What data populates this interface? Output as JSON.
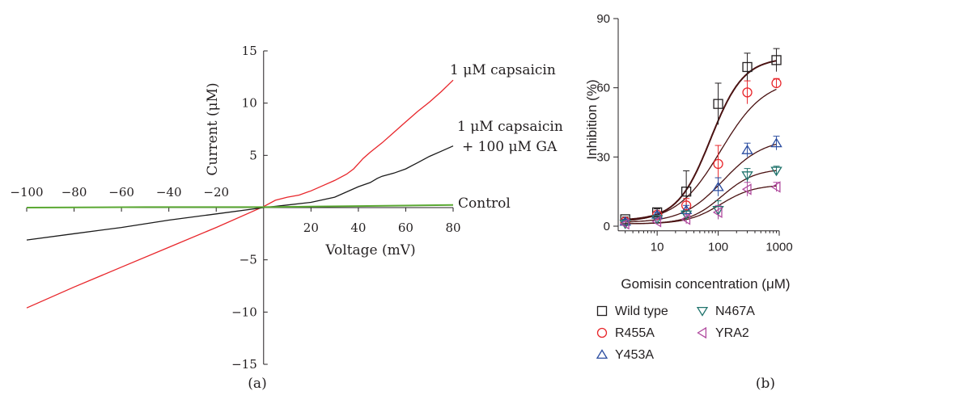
{
  "chart_data": [
    {
      "id": "a",
      "type": "line",
      "panel_label": "(a)",
      "xlabel": "Voltage (mV)",
      "ylabel": "Current (μM)",
      "xlim": [
        -100,
        80
      ],
      "ylim": [
        -15,
        15
      ],
      "xticks": [
        -100,
        -80,
        -60,
        -40,
        -20,
        20,
        40,
        60,
        80
      ],
      "xtick_labels": [
        "−100",
        "−80",
        "−60",
        "−40",
        "−20",
        "20",
        "40",
        "60",
        "80"
      ],
      "yticks": [
        15,
        10,
        5,
        -5,
        -10,
        -15
      ],
      "ytick_labels": [
        "15",
        "10",
        "5",
        "−5",
        "−10",
        "−15"
      ],
      "grid": false,
      "series": [
        {
          "name": "1 μM capsaicin",
          "color": "#e8262b",
          "points": [
            [
              -100,
              -9.6
            ],
            [
              -80,
              -7.6
            ],
            [
              -60,
              -5.7
            ],
            [
              -40,
              -3.8
            ],
            [
              -20,
              -1.9
            ],
            [
              0,
              0.1
            ],
            [
              5,
              0.7
            ],
            [
              10,
              1.0
            ],
            [
              15,
              1.2
            ],
            [
              20,
              1.6
            ],
            [
              25,
              2.1
            ],
            [
              30,
              2.6
            ],
            [
              35,
              3.2
            ],
            [
              38,
              3.7
            ],
            [
              40,
              4.2
            ],
            [
              42,
              4.7
            ],
            [
              45,
              5.3
            ],
            [
              50,
              6.2
            ],
            [
              55,
              7.2
            ],
            [
              60,
              8.2
            ],
            [
              65,
              9.2
            ],
            [
              70,
              10.1
            ],
            [
              75,
              11.1
            ],
            [
              80,
              12.2
            ]
          ]
        },
        {
          "name": "1 μM capsaicin + 100 μM GA",
          "name_line1": "1 μM capsaicin",
          "name_line2": "+ 100 μM GA",
          "color": "#1a1a1a",
          "points": [
            [
              -100,
              -3.1
            ],
            [
              -80,
              -2.5
            ],
            [
              -60,
              -1.9
            ],
            [
              -40,
              -1.2
            ],
            [
              -20,
              -0.6
            ],
            [
              0,
              0
            ],
            [
              10,
              0.25
            ],
            [
              20,
              0.5
            ],
            [
              30,
              1.0
            ],
            [
              40,
              2.0
            ],
            [
              45,
              2.4
            ],
            [
              48,
              2.8
            ],
            [
              50,
              3.0
            ],
            [
              55,
              3.3
            ],
            [
              60,
              3.7
            ],
            [
              65,
              4.3
            ],
            [
              70,
              4.9
            ],
            [
              75,
              5.4
            ],
            [
              80,
              5.9
            ]
          ]
        },
        {
          "name": "Control",
          "color": "#5aa832",
          "points": [
            [
              -100,
              0.0
            ],
            [
              -50,
              0.05
            ],
            [
              0,
              0.05
            ],
            [
              40,
              0.15
            ],
            [
              80,
              0.25
            ]
          ]
        }
      ]
    },
    {
      "id": "b",
      "type": "scatter",
      "panel_label": "(b)",
      "xlabel": "Gomisin concentration (μM)",
      "ylabel": "Inhibition (%)",
      "xscale": "log",
      "xlim": [
        2.3,
        1000
      ],
      "ylim": [
        -2,
        90
      ],
      "xticks": [
        10,
        100,
        1000
      ],
      "xtick_labels": [
        "10",
        "100",
        "1000"
      ],
      "yticks": [
        0,
        30,
        60,
        90
      ],
      "ytick_labels": [
        "0",
        "30",
        "60",
        "90"
      ],
      "grid": false,
      "legend_position": "below",
      "x": [
        3,
        10,
        30,
        100,
        300,
        900
      ],
      "series": [
        {
          "name": "Wild type",
          "marker": "square",
          "color": "#231f20",
          "values": [
            3,
            6,
            15,
            53,
            69,
            72
          ],
          "errors": [
            1,
            1.5,
            9,
            9,
            6,
            5
          ],
          "fit": {
            "bottom": 2.5,
            "top": 73,
            "ec50": 75,
            "hill": 1.6
          }
        },
        {
          "name": "R455A",
          "marker": "circle",
          "color": "#e8262b",
          "values": [
            2,
            5,
            9,
            27,
            58,
            62
          ],
          "errors": [
            1,
            1,
            3,
            8,
            5,
            2
          ],
          "fit": {
            "bottom": 1.5,
            "top": 64,
            "ec50": 110,
            "hill": 1.2
          }
        },
        {
          "name": "Y453A",
          "marker": "triangle-up",
          "color": "#2b4da0",
          "values": [
            2,
            5,
            7,
            17,
            33,
            36
          ],
          "errors": [
            1,
            1,
            2,
            4,
            3,
            3
          ],
          "fit": {
            "bottom": 1.5,
            "top": 38,
            "ec50": 120,
            "hill": 1.3
          }
        },
        {
          "name": "N467A",
          "marker": "triangle-down",
          "color": "#21746d",
          "values": [
            1,
            3,
            5,
            7,
            22,
            24
          ],
          "errors": [
            1,
            1,
            2,
            4,
            3,
            2
          ],
          "fit": {
            "bottom": 1,
            "top": 25,
            "ec50": 115,
            "hill": 1.6
          }
        },
        {
          "name": "YRA2",
          "marker": "triangle-left",
          "color": "#b04a9e",
          "values": [
            1,
            2,
            3,
            6,
            16,
            17
          ],
          "errors": [
            1,
            1,
            2,
            3,
            3,
            2
          ],
          "fit": {
            "bottom": 1,
            "top": 18,
            "ec50": 110,
            "hill": 1.6
          }
        }
      ],
      "fit_color": "#4a1212"
    }
  ]
}
